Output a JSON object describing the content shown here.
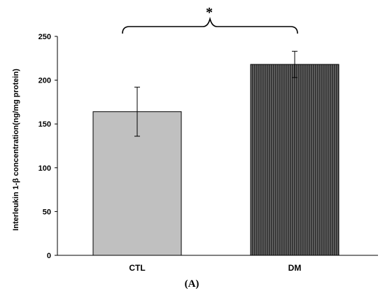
{
  "chart_data": {
    "type": "bar",
    "categories": [
      "CTL",
      "DM"
    ],
    "values": [
      164,
      218
    ],
    "error": [
      28,
      15
    ],
    "bar_colors": [
      "#c0c0c0",
      "#4a4a4a"
    ],
    "ylabel": "Interleukin 1-β concentration(ng/mg protein)",
    "ylim": [
      0,
      250
    ],
    "yticks": [
      0,
      50,
      100,
      150,
      200,
      250
    ],
    "ytick_labels": [
      "0",
      "50",
      "100",
      "150",
      "200",
      "250"
    ],
    "grid": false,
    "annotation": {
      "text": "*",
      "between": [
        "CTL",
        "DM"
      ]
    },
    "panel_label": "(A)"
  }
}
